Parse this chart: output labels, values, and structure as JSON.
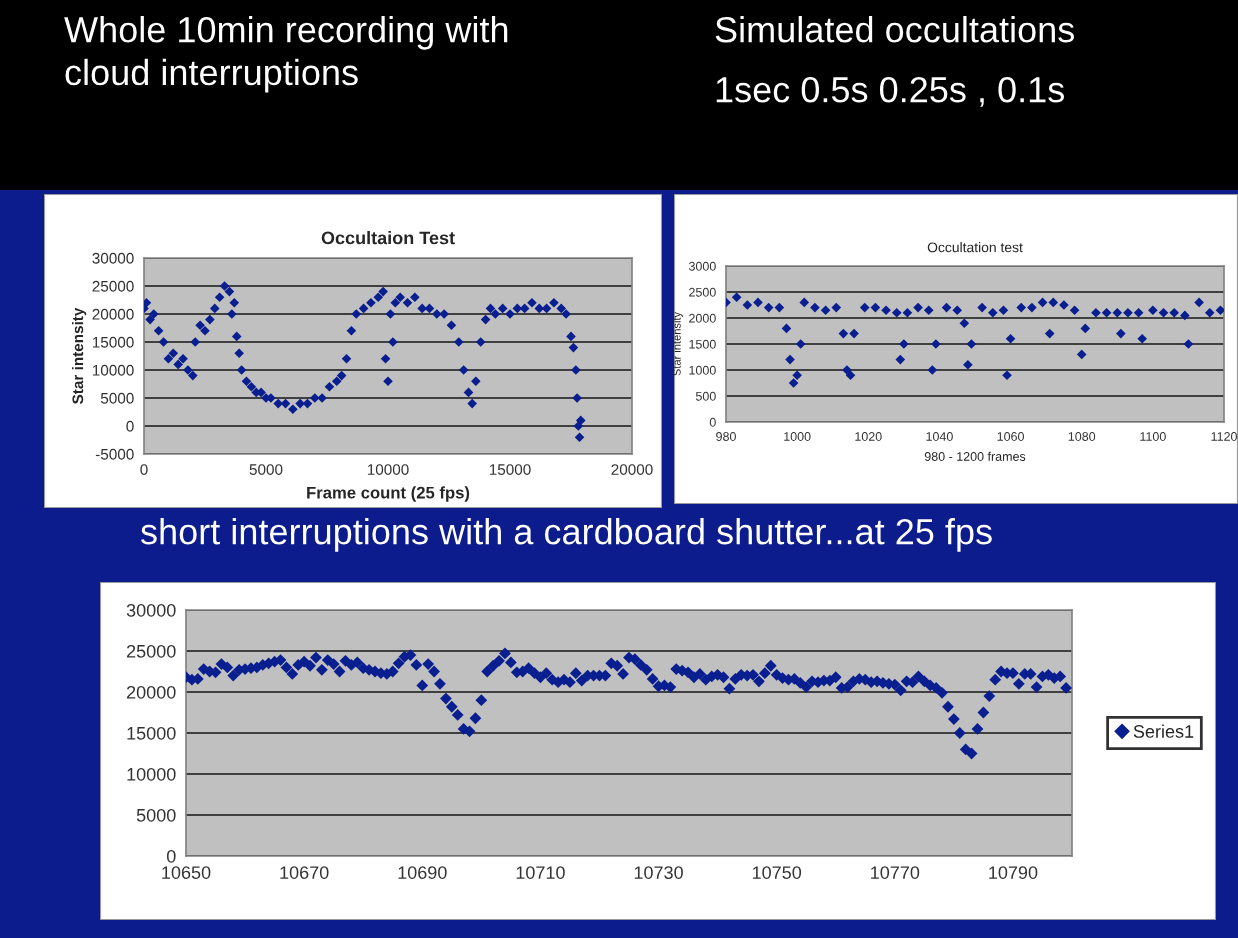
{
  "chart_data": [
    {
      "type": "scatter",
      "title": "Occultaion Test",
      "xlabel": "Frame count (25 fps)",
      "ylabel": "Star intensity",
      "annotations": [
        "Whole 10min recording with\ncloud interruptions"
      ],
      "xlim": [
        0,
        20000
      ],
      "xticks": [
        0,
        5000,
        10000,
        15000,
        20000
      ],
      "ylim": [
        -5000,
        30000
      ],
      "yticks": [
        -5000,
        0,
        5000,
        10000,
        15000,
        20000,
        25000,
        30000
      ],
      "grid": "y",
      "marker": "diamond",
      "tick_labels": "xy",
      "series": [
        {
          "color": "#0a1f8f",
          "x": [
            0,
            100,
            250,
            400,
            600,
            800,
            1000,
            1200,
            1400,
            1600,
            1800,
            2000,
            2100,
            2300,
            2500,
            2700,
            2900,
            3100,
            3300,
            3500,
            3600,
            3700,
            3800,
            3900,
            4000,
            4200,
            4400,
            4600,
            4800,
            5000,
            5200,
            5500,
            5800,
            6100,
            6400,
            6700,
            7000,
            7300,
            7600,
            7900,
            8100,
            8300,
            8500,
            8700,
            9000,
            9300,
            9600,
            9800,
            9900,
            10000,
            10100,
            10200,
            10300,
            10500,
            10800,
            11100,
            11400,
            11700,
            12000,
            12300,
            12600,
            12900,
            13100,
            13300,
            13450,
            13600,
            13800,
            14000,
            14200,
            14400,
            14700,
            15000,
            15300,
            15600,
            15900,
            16200,
            16500,
            16800,
            17100,
            17300,
            17500,
            17600,
            17700,
            17750,
            17800,
            17850,
            17900
          ],
          "values": [
            21000,
            22000,
            19000,
            20000,
            17000,
            15000,
            12000,
            13000,
            11000,
            12000,
            10000,
            9000,
            15000,
            18000,
            17000,
            19000,
            21000,
            23000,
            25000,
            24000,
            20000,
            22000,
            16000,
            13000,
            10000,
            8000,
            7000,
            6000,
            6000,
            5000,
            5000,
            4000,
            4000,
            3000,
            4000,
            4000,
            5000,
            5000,
            7000,
            8000,
            9000,
            12000,
            17000,
            20000,
            21000,
            22000,
            23000,
            24000,
            12000,
            8000,
            20000,
            15000,
            22000,
            23000,
            22000,
            23000,
            21000,
            21000,
            20000,
            20000,
            18000,
            15000,
            10000,
            6000,
            4000,
            8000,
            15000,
            19000,
            21000,
            20000,
            21000,
            20000,
            21000,
            21000,
            22000,
            21000,
            21000,
            22000,
            21000,
            20000,
            16000,
            14000,
            10000,
            5000,
            0,
            -2000,
            1000
          ]
        }
      ]
    },
    {
      "type": "scatter",
      "title": "Occultation test",
      "xlabel": "980 - 1200 frames",
      "ylabel": "Star intensity",
      "annotations": [
        "Simulated occultations",
        "1sec 0.5s 0.25s , 0.1s"
      ],
      "xlim": [
        980,
        1120
      ],
      "xticks": [
        980,
        1000,
        1020,
        1040,
        1060,
        1080,
        1100,
        1120
      ],
      "ylim": [
        0,
        3000
      ],
      "yticks": [
        0,
        500,
        1000,
        1500,
        2000,
        2500,
        3000
      ],
      "grid": "y",
      "marker": "diamond",
      "series": [
        {
          "color": "#0a1f8f",
          "x": [
            980,
            983,
            986,
            989,
            992,
            995,
            997,
            998,
            999,
            1000,
            1001,
            1002,
            1005,
            1008,
            1011,
            1013,
            1014,
            1015,
            1016,
            1019,
            1022,
            1025,
            1028,
            1029,
            1030,
            1031,
            1034,
            1037,
            1038,
            1039,
            1042,
            1045,
            1047,
            1048,
            1049,
            1052,
            1055,
            1058,
            1059,
            1060,
            1063,
            1066,
            1069,
            1071,
            1072,
            1075,
            1078,
            1080,
            1081,
            1084,
            1087,
            1090,
            1091,
            1093,
            1096,
            1097,
            1100,
            1103,
            1106,
            1109,
            1110,
            1113,
            1116,
            1119
          ],
          "values": [
            2300,
            2400,
            2250,
            2300,
            2200,
            2200,
            1800,
            1200,
            750,
            900,
            1500,
            2300,
            2200,
            2150,
            2200,
            1700,
            1000,
            900,
            1700,
            2200,
            2200,
            2150,
            2100,
            1200,
            1500,
            2100,
            2200,
            2150,
            1000,
            1500,
            2200,
            2150,
            1900,
            1100,
            1500,
            2200,
            2100,
            2150,
            900,
            1600,
            2200,
            2200,
            2300,
            1700,
            2300,
            2250,
            2150,
            1300,
            1800,
            2100,
            2100,
            2100,
            1700,
            2100,
            2100,
            1600,
            2150,
            2100,
            2100,
            2050,
            1500,
            2300,
            2100,
            2150
          ]
        }
      ]
    },
    {
      "type": "scatter",
      "annotations": [
        "short interruptions with a cardboard shutter...at 25 fps"
      ],
      "xlim": [
        10650,
        10800
      ],
      "xticks": [
        10650,
        10670,
        10690,
        10710,
        10730,
        10750,
        10770,
        10790
      ],
      "ylim": [
        0,
        30000
      ],
      "yticks": [
        0,
        5000,
        10000,
        15000,
        20000,
        25000,
        30000
      ],
      "grid": "y",
      "marker": "diamond",
      "legend": "right",
      "series": [
        {
          "name": "Series1",
          "color": "#0a1f8f",
          "x": [
            10650,
            10651,
            10652,
            10653,
            10654,
            10655,
            10656,
            10657,
            10658,
            10659,
            10660,
            10661,
            10662,
            10663,
            10664,
            10665,
            10666,
            10667,
            10668,
            10669,
            10670,
            10671,
            10672,
            10673,
            10674,
            10675,
            10676,
            10677,
            10678,
            10679,
            10680,
            10681,
            10682,
            10683,
            10684,
            10685,
            10686,
            10687,
            10688,
            10689,
            10690,
            10691,
            10692,
            10693,
            10694,
            10695,
            10696,
            10697,
            10698,
            10699,
            10700,
            10701,
            10702,
            10703,
            10704,
            10705,
            10706,
            10707,
            10708,
            10709,
            10710,
            10711,
            10712,
            10713,
            10714,
            10715,
            10716,
            10717,
            10718,
            10719,
            10720,
            10721,
            10722,
            10723,
            10724,
            10725,
            10726,
            10727,
            10728,
            10729,
            10730,
            10731,
            10732,
            10733,
            10734,
            10735,
            10736,
            10737,
            10738,
            10739,
            10740,
            10741,
            10742,
            10743,
            10744,
            10745,
            10746,
            10747,
            10748,
            10749,
            10750,
            10751,
            10752,
            10753,
            10754,
            10755,
            10756,
            10757,
            10758,
            10759,
            10760,
            10761,
            10762,
            10763,
            10764,
            10765,
            10766,
            10767,
            10768,
            10769,
            10770,
            10771,
            10772,
            10773,
            10774,
            10775,
            10776,
            10777,
            10778,
            10779,
            10780,
            10781,
            10782,
            10783,
            10784,
            10785,
            10786,
            10787,
            10788,
            10789,
            10790,
            10791,
            10792,
            10793,
            10794,
            10795,
            10796,
            10797,
            10798,
            10799
          ],
          "values": [
            21800,
            21500,
            21600,
            22800,
            22500,
            22400,
            23400,
            23000,
            22000,
            22700,
            22800,
            22900,
            23000,
            23300,
            23500,
            23700,
            23900,
            23000,
            22200,
            23300,
            23700,
            23200,
            24200,
            22700,
            23900,
            23400,
            22500,
            23800,
            23300,
            23600,
            22900,
            22700,
            22500,
            22300,
            22200,
            22500,
            23500,
            24300,
            24500,
            23300,
            20800,
            23400,
            22500,
            21000,
            19200,
            18200,
            17200,
            15500,
            15200,
            16800,
            19000,
            22500,
            23200,
            23800,
            24700,
            23600,
            22400,
            22500,
            22900,
            22300,
            21800,
            22300,
            21500,
            21200,
            21500,
            21200,
            22300,
            21400,
            22000,
            22000,
            22000,
            22000,
            23500,
            23200,
            22200,
            24200,
            24000,
            23300,
            22700,
            21600,
            20700,
            20800,
            20600,
            22800,
            22600,
            22400,
            21800,
            22200,
            21500,
            21900,
            22100,
            21800,
            20400,
            21600,
            22100,
            22000,
            22100,
            21300,
            22300,
            23200,
            22100,
            21700,
            21500,
            21600,
            21100,
            20600,
            21300,
            21200,
            21400,
            21400,
            21800,
            20500,
            20600,
            21300,
            21600,
            21500,
            21200,
            21300,
            21100,
            21000,
            20900,
            20200,
            21300,
            21200,
            21900,
            21300,
            20800,
            20500,
            19900,
            18200,
            16700,
            15000,
            13000,
            12500,
            15500,
            17500,
            19500,
            21500,
            22500,
            22300,
            22300,
            21000,
            22200,
            22200,
            20600,
            21900,
            22100,
            21700,
            21900,
            20500
          ]
        }
      ]
    }
  ]
}
